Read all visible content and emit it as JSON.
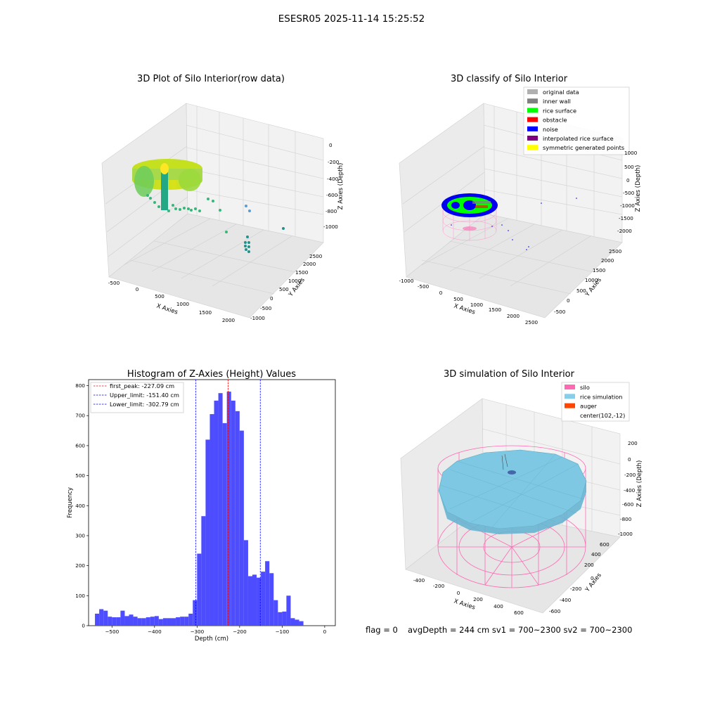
{
  "figure": {
    "suptitle": "ESESR05 2025-11-14 15:25:52",
    "footer_flag": "flag = 0",
    "footer_stats": "avgDepth = 244 cm  sv1 = 700~2300  sv2 = 700~2300"
  },
  "chart_data": [
    {
      "type": "scatter",
      "projection": "3d",
      "title": "3D Plot of Silo Interior(row data)",
      "xlabel": "X Axies",
      "ylabel": "Y Axies",
      "zlabel": "Z Axies (Depth)",
      "x_ticks": [
        "-500",
        "0",
        "500",
        "1000",
        "1500",
        "2000"
      ],
      "y_ticks": [
        "-1000",
        "-500",
        "0",
        "500",
        "1000",
        "1500",
        "2000",
        "2500"
      ],
      "z_ticks": [
        "0",
        "-200",
        "-400",
        "-600",
        "-800",
        "-1000"
      ],
      "colormap": "viridis",
      "point_color": "#35b779",
      "grid": true
    },
    {
      "type": "scatter",
      "projection": "3d",
      "title": "3D classify of Silo Interior",
      "xlabel": "X Axies",
      "ylabel": "Y Axies",
      "zlabel": "Z Axies (Depth)",
      "x_ticks": [
        "-1000",
        "-500",
        "0",
        "500",
        "1000",
        "1500",
        "2000",
        "2500"
      ],
      "y_ticks": [
        "-500",
        "0",
        "500",
        "1000",
        "1500",
        "2000",
        "2500"
      ],
      "z_ticks": [
        "1000",
        "500",
        "0",
        "-500",
        "-1000",
        "-1500",
        "-2000"
      ],
      "legend_position": "top-right",
      "legend": [
        {
          "label": "original data",
          "color": "#b0b0b0"
        },
        {
          "label": "inner wall",
          "color": "#808080"
        },
        {
          "label": "rice surface",
          "color": "#00ff00"
        },
        {
          "label": "obstacle",
          "color": "#ff0000"
        },
        {
          "label": "noise",
          "color": "#0000ff"
        },
        {
          "label": "interpolated rice surface",
          "color": "#800080"
        },
        {
          "label": "symmetric generated points",
          "color": "#ffff00"
        }
      ],
      "grid": true
    },
    {
      "type": "bar",
      "title": "Histogram of Z-Axies (Height) Values",
      "xlabel": "Depth (cm)",
      "ylabel": "Frequency",
      "xlim": [
        -555,
        25
      ],
      "ylim": [
        0,
        820
      ],
      "x_ticks": [
        -500,
        -400,
        -300,
        -200,
        -100,
        0
      ],
      "y_ticks": [
        0,
        100,
        200,
        300,
        400,
        500,
        600,
        700,
        800
      ],
      "bar_color": "#4d4dff",
      "bin_start": -540,
      "bin_width": 10,
      "values": [
        40,
        55,
        50,
        30,
        28,
        28,
        50,
        32,
        37,
        30,
        25,
        25,
        28,
        30,
        32,
        22,
        25,
        25,
        25,
        28,
        30,
        30,
        40,
        85,
        240,
        365,
        620,
        705,
        750,
        775,
        675,
        780,
        750,
        715,
        650,
        285,
        165,
        170,
        160,
        180,
        215,
        175,
        85,
        45,
        47,
        100,
        25,
        20,
        15
      ],
      "vlines": [
        {
          "x": -227.09,
          "color": "#ff0000",
          "label": "first_peak: -227.09 cm"
        },
        {
          "x": -151.4,
          "color": "#0000ff",
          "label": "Upper_limit: -151.40 cm"
        },
        {
          "x": -302.79,
          "color": "#0000ff",
          "label": "Lower_limit: -302.79 cm"
        }
      ],
      "legend_position": "top-left",
      "grid": false
    },
    {
      "type": "surface",
      "projection": "3d",
      "title": "3D simulation of Silo Interior",
      "xlabel": "X Axies",
      "ylabel": "Y Axies",
      "zlabel": "Z Axies (Depth)",
      "x_ticks": [
        "-400",
        "-200",
        "0",
        "200",
        "400",
        "600"
      ],
      "y_ticks": [
        "-600",
        "-400",
        "-200",
        "0",
        "200",
        "400",
        "600"
      ],
      "z_ticks": [
        "200",
        "0",
        "-200",
        "-400",
        "-600",
        "-800",
        "-1000"
      ],
      "legend_position": "top-right",
      "legend": [
        {
          "label": "silo",
          "color": "#ff69b4"
        },
        {
          "label": "rice simulation",
          "color": "#87ceeb"
        },
        {
          "label": "auger",
          "color": "#ff4500"
        },
        {
          "label": "center(102,-12)",
          "color": ""
        }
      ],
      "grid": true
    }
  ]
}
